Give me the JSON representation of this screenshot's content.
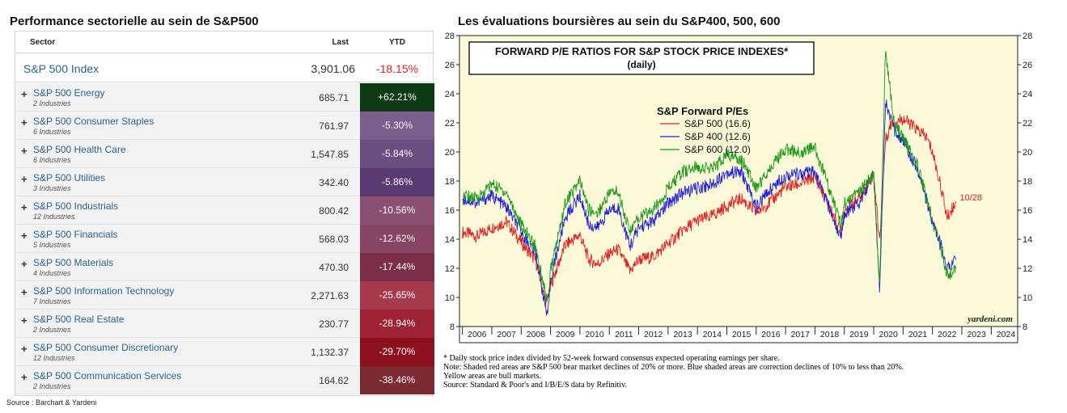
{
  "left_title": "Performance sectorielle au sein de S&P500",
  "right_title": "Les évaluations boursières au sein du S&P400, 500, 600",
  "table": {
    "headers": {
      "sector": "Sector",
      "last": "Last",
      "ytd": "YTD"
    },
    "index_row": {
      "name": "S&P 500 Index",
      "last": "3,901.06",
      "ytd": "-18.15%"
    },
    "rows": [
      {
        "name": "S&P 500 Energy",
        "sub": "2 Industries",
        "last": "685.71",
        "ytd": "+62.21%",
        "color": "#0e3b16"
      },
      {
        "name": "S&P 500 Consumer Staples",
        "sub": "6 Industries",
        "last": "761.97",
        "ytd": "-5.30%",
        "color": "#7a5f8e"
      },
      {
        "name": "S&P 500 Health Care",
        "sub": "6 Industries",
        "last": "1,547.85",
        "ytd": "-5.84%",
        "color": "#6c4f82"
      },
      {
        "name": "S&P 500 Utilities",
        "sub": "3 Industries",
        "last": "342.40",
        "ytd": "-5.86%",
        "color": "#5a3a72"
      },
      {
        "name": "S&P 500 Industrials",
        "sub": "12 Industries",
        "last": "800.42",
        "ytd": "-10.56%",
        "color": "#8a5071"
      },
      {
        "name": "S&P 500 Financials",
        "sub": "5 Industries",
        "last": "568.03",
        "ytd": "-12.62%",
        "color": "#864563"
      },
      {
        "name": "S&P 500 Materials",
        "sub": "4 Industries",
        "last": "470.30",
        "ytd": "-17.44%",
        "color": "#7c2d4a"
      },
      {
        "name": "S&P 500 Information Technology",
        "sub": "7 Industries",
        "last": "2,271.63",
        "ytd": "-25.65%",
        "color": "#a63a4a"
      },
      {
        "name": "S&P 500 Real Estate",
        "sub": "2 Industries",
        "last": "230.77",
        "ytd": "-28.94%",
        "color": "#9c2234"
      },
      {
        "name": "S&P 500 Consumer Discretionary",
        "sub": "12 Industries",
        "last": "1,132.37",
        "ytd": "-29.70%",
        "color": "#8e0f1e"
      },
      {
        "name": "S&P 500 Communication Services",
        "sub": "2 Industries",
        "last": "164.62",
        "ytd": "-38.46%",
        "color": "#7a2a30"
      }
    ]
  },
  "source": "Source : Barchart & Yardeni",
  "chart_data": {
    "type": "line",
    "title": "FORWARD P/E RATIOS FOR S&P STOCK PRICE INDEXES*",
    "subtitle": "(daily)",
    "legend_title": "S&P Forward P/Es",
    "legend_position": "top-center",
    "grid": false,
    "background": "#fcf9d9",
    "x_ticks": [
      "2006",
      "2007",
      "2008",
      "2009",
      "2010",
      "2011",
      "2012",
      "2013",
      "2014",
      "2015",
      "2016",
      "2017",
      "2018",
      "2019",
      "2020",
      "2021",
      "2022",
      "2023",
      "2024"
    ],
    "xlim": [
      2005.9,
      2024.9
    ],
    "ylim": [
      8,
      28
    ],
    "y_ticks": [
      8,
      10,
      12,
      14,
      16,
      18,
      20,
      22,
      24,
      26,
      28
    ],
    "annotation": {
      "text": "10/28",
      "x": 2022.82,
      "y": 16.6,
      "color": "#e02020"
    },
    "watermark": "yardeni.com",
    "series": [
      {
        "name": "S&P 500 (16.6)",
        "color": "#e02020",
        "x": [
          2006.0,
          2006.5,
          2007.0,
          2007.5,
          2008.0,
          2008.5,
          2008.85,
          2009.0,
          2009.5,
          2010.0,
          2010.3,
          2010.6,
          2011.0,
          2011.3,
          2011.7,
          2012.0,
          2012.5,
          2013.0,
          2013.5,
          2014.0,
          2014.5,
          2015.0,
          2015.5,
          2016.0,
          2016.5,
          2017.0,
          2017.5,
          2018.0,
          2018.9,
          2019.0,
          2019.5,
          2020.0,
          2020.2,
          2020.4,
          2020.6,
          2021.0,
          2021.5,
          2021.8,
          2022.0,
          2022.3,
          2022.5,
          2022.8
        ],
        "y": [
          14.5,
          14.2,
          14.8,
          15.2,
          13.8,
          12.5,
          9.6,
          10.8,
          13.6,
          14.3,
          12.6,
          12.3,
          13.0,
          13.3,
          11.8,
          12.6,
          12.8,
          13.7,
          14.6,
          15.3,
          15.6,
          16.3,
          16.8,
          15.8,
          16.6,
          17.6,
          17.8,
          18.3,
          14.5,
          16.0,
          16.8,
          18.5,
          13.8,
          20.8,
          22.0,
          22.3,
          21.5,
          21.0,
          20.0,
          17.5,
          15.5,
          16.6
        ]
      },
      {
        "name": "S&P 400 (12.6)",
        "color": "#2020d8",
        "x": [
          2006.0,
          2006.5,
          2007.0,
          2007.5,
          2008.0,
          2008.5,
          2008.9,
          2009.0,
          2009.5,
          2010.0,
          2010.3,
          2010.6,
          2011.0,
          2011.3,
          2011.7,
          2012.0,
          2012.5,
          2013.0,
          2013.5,
          2014.0,
          2014.5,
          2015.0,
          2015.5,
          2016.0,
          2016.5,
          2017.0,
          2017.5,
          2018.0,
          2018.9,
          2019.0,
          2019.5,
          2020.0,
          2020.2,
          2020.4,
          2020.7,
          2021.0,
          2021.5,
          2022.0,
          2022.3,
          2022.5,
          2022.8
        ],
        "y": [
          16.8,
          16.5,
          17.0,
          16.2,
          14.5,
          13.0,
          8.5,
          11.2,
          15.5,
          17.0,
          15.0,
          14.8,
          16.0,
          16.2,
          13.5,
          14.8,
          15.2,
          16.5,
          17.2,
          17.5,
          17.8,
          18.6,
          18.6,
          16.2,
          17.5,
          18.4,
          18.5,
          18.6,
          14.0,
          15.8,
          16.5,
          18.5,
          10.5,
          23.5,
          21.5,
          20.8,
          18.8,
          15.2,
          13.5,
          12.0,
          12.6
        ]
      },
      {
        "name": "S&P 600 (12.0)",
        "color": "#1c9a1c",
        "x": [
          2006.0,
          2006.5,
          2007.0,
          2007.5,
          2008.0,
          2008.5,
          2008.9,
          2009.0,
          2009.5,
          2010.0,
          2010.3,
          2010.6,
          2011.0,
          2011.3,
          2011.7,
          2012.0,
          2012.5,
          2013.0,
          2013.5,
          2014.0,
          2014.5,
          2015.0,
          2015.5,
          2016.0,
          2016.5,
          2017.0,
          2017.5,
          2018.0,
          2018.9,
          2019.0,
          2019.5,
          2020.0,
          2020.2,
          2020.4,
          2020.7,
          2021.0,
          2021.5,
          2022.0,
          2022.3,
          2022.5,
          2022.8
        ],
        "y": [
          17.0,
          16.8,
          17.8,
          17.2,
          15.0,
          13.5,
          9.5,
          11.8,
          16.5,
          18.0,
          16.0,
          15.8,
          17.2,
          17.3,
          14.5,
          15.5,
          16.0,
          17.5,
          18.6,
          19.0,
          18.8,
          19.8,
          19.5,
          17.5,
          19.0,
          20.2,
          20.0,
          20.3,
          15.0,
          16.5,
          17.2,
          18.5,
          11.0,
          27.0,
          22.0,
          21.0,
          19.0,
          15.3,
          13.2,
          11.5,
          12.0
        ]
      }
    ],
    "notes": [
      "*  Daily stock price index divided by 52-week forward consensus expected operating earnings per share.",
      "Note: Shaded red areas are S&P 500 bear market declines of 20% or more.  Blue shaded areas are correction declines of 10% to less than 20%.",
      "Yellow areas are bull markets.",
      "Source: Standard & Poor's and I/B/E/S data by Refinitiv."
    ]
  }
}
